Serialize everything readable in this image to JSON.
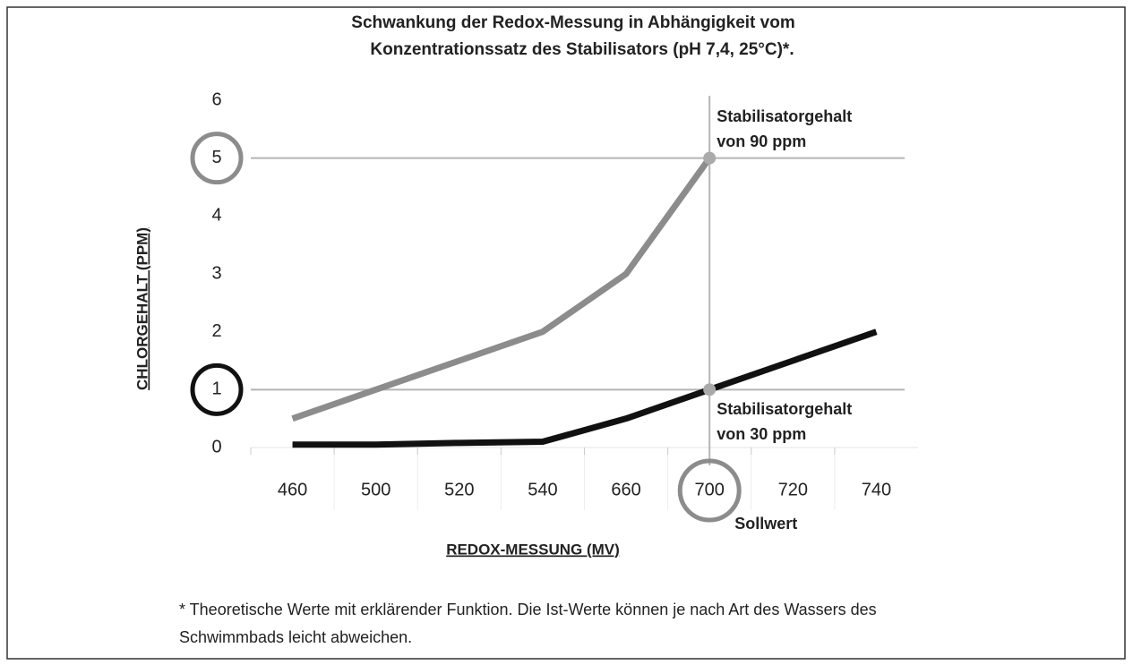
{
  "chart_data": {
    "type": "line",
    "title": [
      "Schwankung der Redox-Messung in Abhängigkeit vom",
      "Konzentrationssatz des Stabilisators (pH 7,4, 25°C)*."
    ],
    "x_label": "REDOX-MESSUNG (MV)",
    "y_label": "CHLORGEHALT (PPM)",
    "categories": [
      "460",
      "500",
      "520",
      "540",
      "660",
      "700",
      "720",
      "740"
    ],
    "series": [
      {
        "name": "Stabilisatorgehalt von 90 ppm",
        "color": "#8c8c8c",
        "values": [
          0.5,
          1.0,
          1.5,
          2,
          3,
          5,
          null,
          null
        ]
      },
      {
        "name": "Stabilisatorgehalt von 30 ppm",
        "color": "#111111",
        "values": [
          0.05,
          0.05,
          0.08,
          0.1,
          0.5,
          1,
          1.5,
          2
        ]
      }
    ],
    "ylim": [
      0,
      6
    ],
    "yticks": [
      0,
      1,
      2,
      3,
      4,
      5,
      6
    ],
    "reference_lines": {
      "y": [
        5,
        1
      ],
      "x": "700",
      "color": "#b5b5b5"
    },
    "circled": [
      {
        "axis": "y",
        "value": 5,
        "color": "#8c8c8c"
      },
      {
        "axis": "y",
        "value": 1,
        "color": "#111111"
      },
      {
        "axis": "x",
        "value": "700",
        "color": "#8c8c8c"
      }
    ],
    "x_annotation": "Sollwert",
    "footnote": "* Theoretische Werte mit erklärender Funktion. Die Ist-Werte können je nach Art des Wassers des Schwimmbads leicht abweichen."
  }
}
